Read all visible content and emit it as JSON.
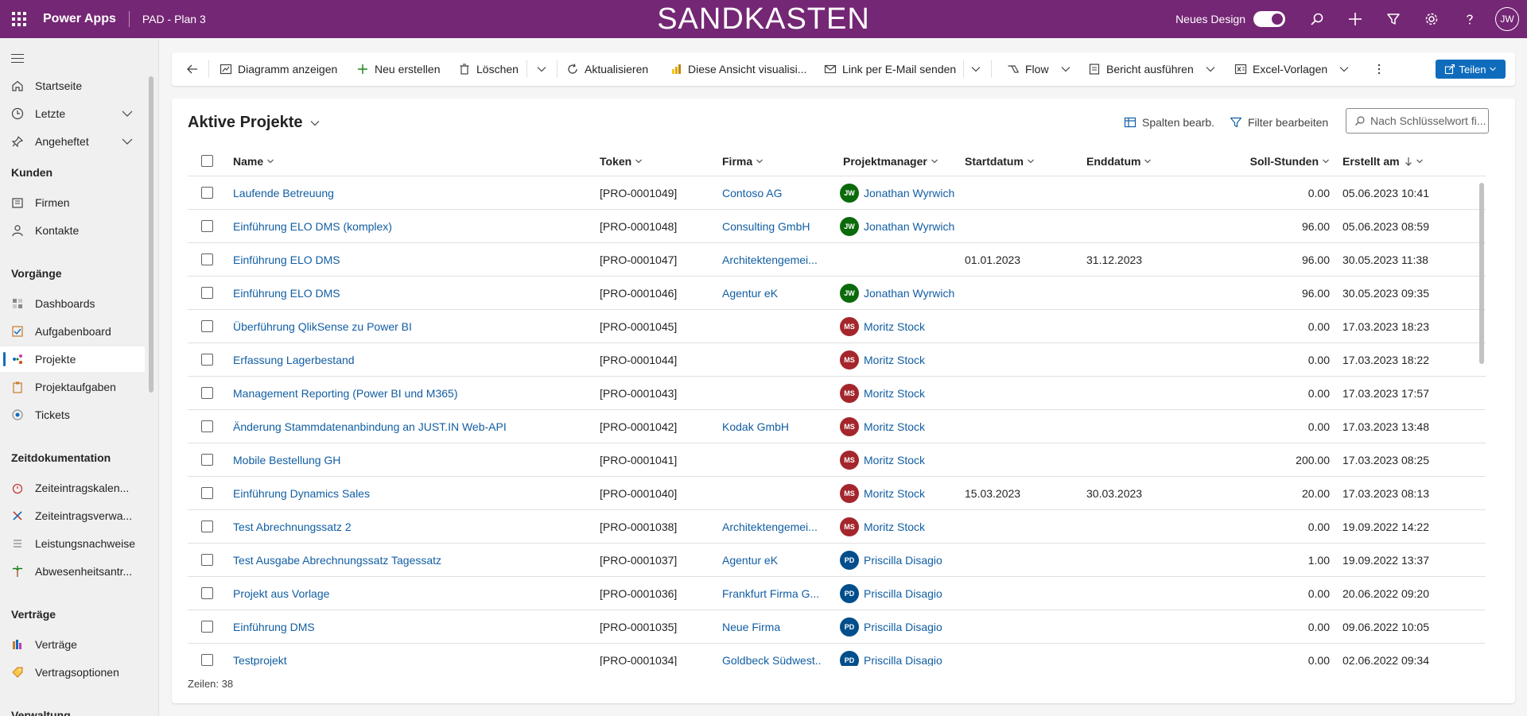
{
  "topbar": {
    "app_name": "Power Apps",
    "env_name": "PAD - Plan 3",
    "banner": "SANDKASTEN",
    "new_design_label": "Neues Design",
    "new_design_on": true,
    "user_initials": "JW",
    "accent": "#742774"
  },
  "sidebar": {
    "items_top": [
      {
        "label": "Startseite",
        "icon": "home-icon"
      },
      {
        "label": "Letzte",
        "icon": "clock-icon"
      },
      {
        "label": "Angeheftet",
        "icon": "pin-icon"
      }
    ],
    "groups": [
      {
        "title": "Kunden",
        "items": [
          {
            "label": "Firmen",
            "icon": "building-icon"
          },
          {
            "label": "Kontakte",
            "icon": "person-icon"
          }
        ]
      },
      {
        "title": "Vorgänge",
        "items": [
          {
            "label": "Dashboards",
            "icon": "dashboard-icon"
          },
          {
            "label": "Aufgabenboard",
            "icon": "taskboard-icon"
          },
          {
            "label": "Projekte",
            "icon": "project-icon",
            "active": true
          },
          {
            "label": "Projektaufgaben",
            "icon": "clipboard-icon"
          },
          {
            "label": "Tickets",
            "icon": "ticket-icon"
          }
        ]
      },
      {
        "title": "Zeitdokumentation",
        "items": [
          {
            "label": "Zeiteintragskalen...",
            "icon": "timer-icon"
          },
          {
            "label": "Zeiteintragsverwa...",
            "icon": "tools-icon"
          },
          {
            "label": "Leistungsnachweise",
            "icon": "list-icon"
          },
          {
            "label": "Abwesenheitsantr...",
            "icon": "palm-icon"
          }
        ]
      },
      {
        "title": "Verträge",
        "items": [
          {
            "label": "Verträge",
            "icon": "contract-icon"
          },
          {
            "label": "Vertragsoptionen",
            "icon": "tag-icon"
          }
        ]
      },
      {
        "title": "Verwaltung",
        "items": []
      }
    ]
  },
  "commandbar": {
    "show_chart": "Diagramm anzeigen",
    "new": "Neu erstellen",
    "delete": "Löschen",
    "refresh": "Aktualisieren",
    "visualize": "Diese Ansicht visualisi...",
    "email_link": "Link per E-Mail senden",
    "flow": "Flow",
    "run_report": "Bericht ausführen",
    "excel_templates": "Excel-Vorlagen",
    "share": "Teilen"
  },
  "view": {
    "title": "Aktive Projekte",
    "edit_columns": "Spalten bearb.",
    "edit_filters": "Filter bearbeiten",
    "search_placeholder": "Nach Schlüsselwort fi...",
    "row_count": "Zeilen: 38"
  },
  "columns": {
    "name": "Name",
    "token": "Token",
    "firm": "Firma",
    "pm": "Projektmanager",
    "start": "Startdatum",
    "end": "Enddatum",
    "hours": "Soll-Stunden",
    "created": "Erstellt am"
  },
  "rows": [
    {
      "name": "Laufende Betreuung",
      "token": "[PRO-0001049]",
      "firm": "Contoso AG",
      "pm": "Jonathan Wyrwich",
      "pm_initials": "JW",
      "pm_color": "#0b6a0b",
      "start": "",
      "end": "",
      "hours": "0.00",
      "created": "05.06.2023 10:41"
    },
    {
      "name": "Einführung ELO DMS (komplex)",
      "token": "[PRO-0001048]",
      "firm": "Consulting GmbH",
      "pm": "Jonathan Wyrwich",
      "pm_initials": "JW",
      "pm_color": "#0b6a0b",
      "start": "",
      "end": "",
      "hours": "96.00",
      "created": "05.06.2023 08:59"
    },
    {
      "name": "Einführung ELO DMS",
      "token": "[PRO-0001047]",
      "firm": "Architektengemei...",
      "pm": "",
      "pm_initials": "",
      "pm_color": "",
      "start": "01.01.2023",
      "end": "31.12.2023",
      "hours": "96.00",
      "created": "30.05.2023 11:38"
    },
    {
      "name": "Einführung ELO DMS",
      "token": "[PRO-0001046]",
      "firm": "Agentur eK",
      "pm": "Jonathan Wyrwich",
      "pm_initials": "JW",
      "pm_color": "#0b6a0b",
      "start": "",
      "end": "",
      "hours": "96.00",
      "created": "30.05.2023 09:35"
    },
    {
      "name": "Überführung QlikSense zu Power BI",
      "token": "[PRO-0001045]",
      "firm": "",
      "pm": "Moritz Stock",
      "pm_initials": "MS",
      "pm_color": "#a4262c",
      "start": "",
      "end": "",
      "hours": "0.00",
      "created": "17.03.2023 18:23"
    },
    {
      "name": "Erfassung Lagerbestand",
      "token": "[PRO-0001044]",
      "firm": "",
      "pm": "Moritz Stock",
      "pm_initials": "MS",
      "pm_color": "#a4262c",
      "start": "",
      "end": "",
      "hours": "0.00",
      "created": "17.03.2023 18:22"
    },
    {
      "name": "Management Reporting (Power BI und M365)",
      "token": "[PRO-0001043]",
      "firm": "",
      "pm": "Moritz Stock",
      "pm_initials": "MS",
      "pm_color": "#a4262c",
      "start": "",
      "end": "",
      "hours": "0.00",
      "created": "17.03.2023 17:57"
    },
    {
      "name": "Änderung Stammdatenanbindung an JUST.IN Web-API",
      "token": "[PRO-0001042]",
      "firm": "Kodak GmbH",
      "pm": "Moritz Stock",
      "pm_initials": "MS",
      "pm_color": "#a4262c",
      "start": "",
      "end": "",
      "hours": "0.00",
      "created": "17.03.2023 13:48"
    },
    {
      "name": "Mobile Bestellung GH",
      "token": "[PRO-0001041]",
      "firm": "",
      "pm": "Moritz Stock",
      "pm_initials": "MS",
      "pm_color": "#a4262c",
      "start": "",
      "end": "",
      "hours": "200.00",
      "created": "17.03.2023 08:25"
    },
    {
      "name": "Einführung Dynamics Sales",
      "token": "[PRO-0001040]",
      "firm": "",
      "pm": "Moritz Stock",
      "pm_initials": "MS",
      "pm_color": "#a4262c",
      "start": "15.03.2023",
      "end": "30.03.2023",
      "hours": "20.00",
      "created": "17.03.2023 08:13"
    },
    {
      "name": "Test Abrechnungssatz 2",
      "token": "[PRO-0001038]",
      "firm": "Architektengemei...",
      "pm": "Moritz Stock",
      "pm_initials": "MS",
      "pm_color": "#a4262c",
      "start": "",
      "end": "",
      "hours": "0.00",
      "created": "19.09.2022 14:22"
    },
    {
      "name": "Test Ausgabe Abrechnungssatz Tagessatz",
      "token": "[PRO-0001037]",
      "firm": "Agentur eK",
      "pm": "Priscilla Disagio",
      "pm_initials": "PD",
      "pm_color": "#004e8c",
      "start": "",
      "end": "",
      "hours": "1.00",
      "created": "19.09.2022 13:37"
    },
    {
      "name": "Projekt aus Vorlage",
      "token": "[PRO-0001036]",
      "firm": "Frankfurt Firma G...",
      "pm": "Priscilla Disagio",
      "pm_initials": "PD",
      "pm_color": "#004e8c",
      "start": "",
      "end": "",
      "hours": "0.00",
      "created": "20.06.2022 09:20"
    },
    {
      "name": "Einführung DMS",
      "token": "[PRO-0001035]",
      "firm": "Neue Firma",
      "pm": "Priscilla Disagio",
      "pm_initials": "PD",
      "pm_color": "#004e8c",
      "start": "",
      "end": "",
      "hours": "0.00",
      "created": "09.06.2022 10:05"
    },
    {
      "name": "Testprojekt",
      "token": "[PRO-0001034]",
      "firm": "Goldbeck Südwest...",
      "pm": "Priscilla Disagio",
      "pm_initials": "PD",
      "pm_color": "#004e8c",
      "start": "",
      "end": "",
      "hours": "0.00",
      "created": "02.06.2022 09:34"
    }
  ]
}
